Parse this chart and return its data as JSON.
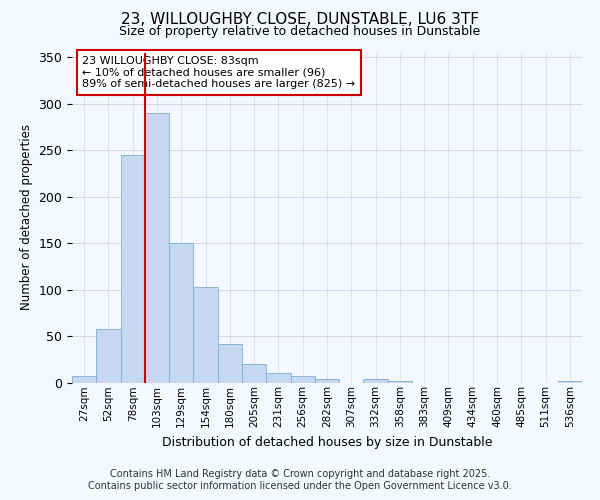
{
  "title_line1": "23, WILLOUGHBY CLOSE, DUNSTABLE, LU6 3TF",
  "title_line2": "Size of property relative to detached houses in Dunstable",
  "xlabel": "Distribution of detached houses by size in Dunstable",
  "ylabel": "Number of detached properties",
  "footnote1": "Contains HM Land Registry data © Crown copyright and database right 2025.",
  "footnote2": "Contains public sector information licensed under the Open Government Licence v3.0.",
  "categories": [
    "27sqm",
    "52sqm",
    "78sqm",
    "103sqm",
    "129sqm",
    "154sqm",
    "180sqm",
    "205sqm",
    "231sqm",
    "256sqm",
    "282sqm",
    "307sqm",
    "332sqm",
    "358sqm",
    "383sqm",
    "409sqm",
    "434sqm",
    "460sqm",
    "485sqm",
    "511sqm",
    "536sqm"
  ],
  "values": [
    7,
    58,
    245,
    290,
    150,
    103,
    41,
    20,
    10,
    7,
    4,
    0,
    4,
    2,
    0,
    0,
    0,
    0,
    0,
    0,
    2
  ],
  "bar_color": "#c5d8f0",
  "bar_edge_color": "#7aafd4",
  "background_color": "#f5f7ff",
  "grid_color": "#d0d8e8",
  "ylim": [
    0,
    355
  ],
  "yticks": [
    0,
    50,
    100,
    150,
    200,
    250,
    300,
    350
  ],
  "vline_x_idx": 2,
  "vline_color": "#cc0000",
  "annotation_text_line1": "23 WILLOUGHBY CLOSE: 83sqm",
  "annotation_text_line2": "← 10% of detached houses are smaller (96)",
  "annotation_text_line3": "89% of semi-detached houses are larger (825) →",
  "annotation_fontsize": 8,
  "title_fontsize": 11,
  "subtitle_fontsize": 9,
  "ylabel_fontsize": 8.5,
  "xlabel_fontsize": 9,
  "footnote_fontsize": 7
}
